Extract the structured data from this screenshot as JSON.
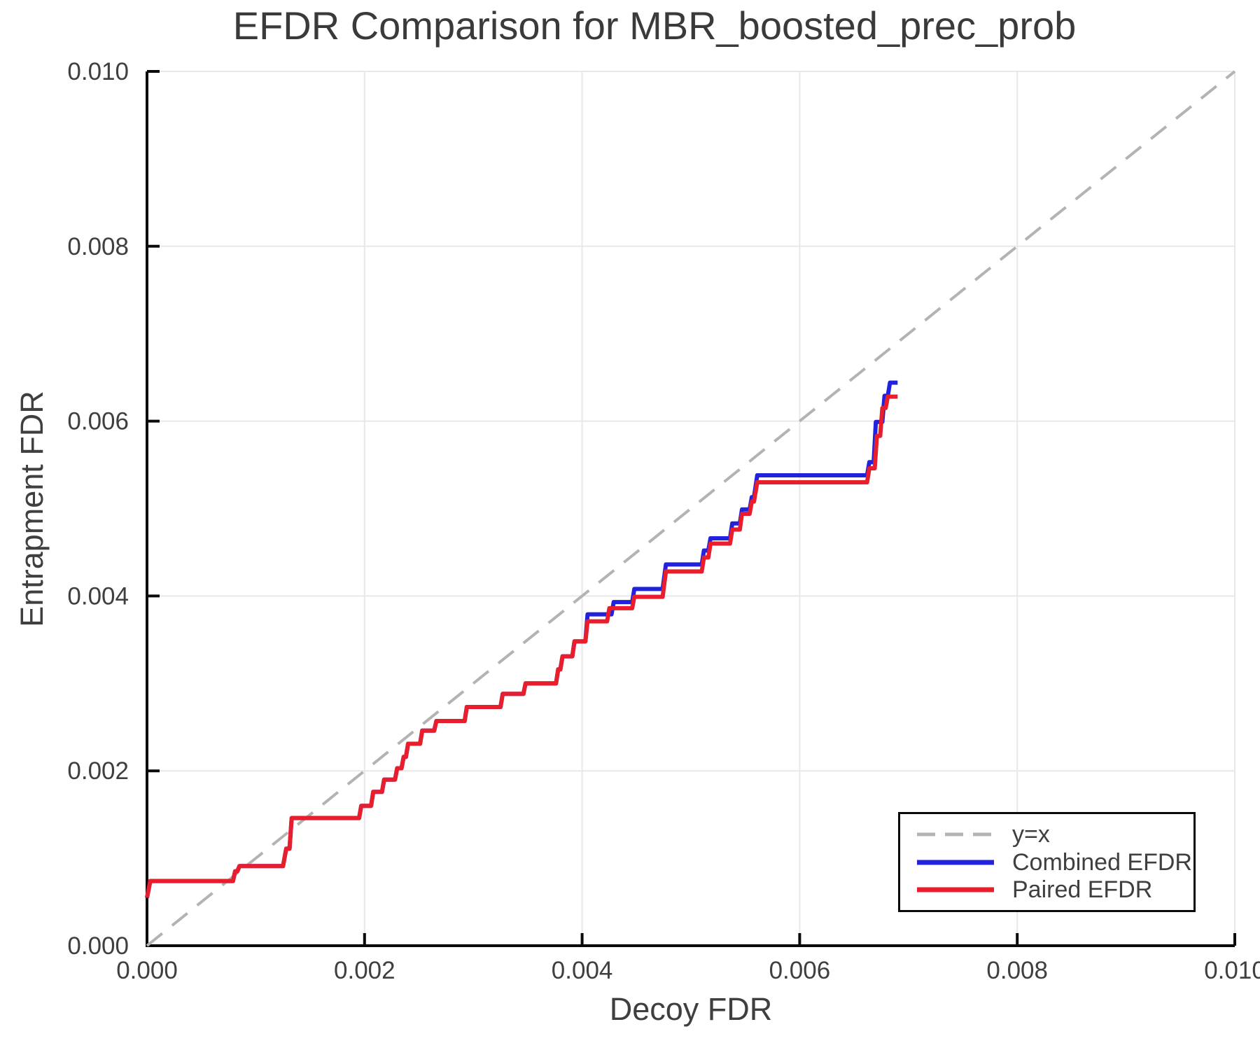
{
  "page": {
    "background": "#ffffff"
  },
  "chart_data": {
    "type": "line",
    "title": "EFDR Comparison for MBR_boosted_prec_prob",
    "xlabel": "Decoy FDR",
    "ylabel": "Entrapment FDR",
    "xlim": [
      0.0,
      0.01
    ],
    "ylim": [
      0.0,
      0.01
    ],
    "grid": true,
    "grid_color": "#e8e8e8",
    "axis_color": "#0a0a0a",
    "text_color": "#3f3f3f",
    "legend_position": "lower right",
    "xticks": {
      "values": [
        0.0,
        0.002,
        0.004,
        0.006,
        0.008,
        0.01
      ],
      "labels": [
        "0.000",
        "0.002",
        "0.004",
        "0.006",
        "0.008",
        "0.010"
      ]
    },
    "yticks": {
      "values": [
        0.0,
        0.002,
        0.004,
        0.006,
        0.008,
        0.01
      ],
      "labels": [
        "0.000",
        "0.002",
        "0.004",
        "0.006",
        "0.008",
        "0.010"
      ]
    },
    "series": [
      {
        "name": "y=x",
        "color": "#b3b3b3",
        "style": "dashed",
        "width": 4,
        "points": [
          [
            0.0,
            0.0
          ],
          [
            0.01,
            0.01
          ]
        ]
      },
      {
        "name": "Combined EFDR",
        "color": "#2222dd",
        "style": "solid",
        "width": 6,
        "points": [
          [
            0.0,
            0.00055
          ],
          [
            3e-05,
            0.00074
          ],
          [
            0.00079,
            0.00074
          ],
          [
            0.00081,
            0.00085
          ],
          [
            0.00083,
            0.00085
          ],
          [
            0.00085,
            0.00091
          ],
          [
            0.00125,
            0.00091
          ],
          [
            0.00128,
            0.00111
          ],
          [
            0.00131,
            0.00111
          ],
          [
            0.00133,
            0.00146
          ],
          [
            0.00195,
            0.00146
          ],
          [
            0.00197,
            0.0016
          ],
          [
            0.00206,
            0.0016
          ],
          [
            0.00208,
            0.00176
          ],
          [
            0.00216,
            0.00176
          ],
          [
            0.00218,
            0.0019
          ],
          [
            0.00228,
            0.0019
          ],
          [
            0.0023,
            0.00203
          ],
          [
            0.00234,
            0.00203
          ],
          [
            0.00236,
            0.00216
          ],
          [
            0.00238,
            0.00216
          ],
          [
            0.0024,
            0.00231
          ],
          [
            0.00251,
            0.00231
          ],
          [
            0.00253,
            0.00246
          ],
          [
            0.00264,
            0.00246
          ],
          [
            0.00266,
            0.00257
          ],
          [
            0.00292,
            0.00257
          ],
          [
            0.00294,
            0.00273
          ],
          [
            0.00325,
            0.00273
          ],
          [
            0.00327,
            0.00288
          ],
          [
            0.00346,
            0.00288
          ],
          [
            0.00348,
            0.003
          ],
          [
            0.00376,
            0.003
          ],
          [
            0.00378,
            0.00316
          ],
          [
            0.0038,
            0.00316
          ],
          [
            0.00382,
            0.00331
          ],
          [
            0.00391,
            0.00331
          ],
          [
            0.00393,
            0.00348
          ],
          [
            0.00403,
            0.00348
          ],
          [
            0.00405,
            0.00379
          ],
          [
            0.00427,
            0.00379
          ],
          [
            0.00429,
            0.00393
          ],
          [
            0.00446,
            0.00393
          ],
          [
            0.00448,
            0.00408
          ],
          [
            0.00474,
            0.00408
          ],
          [
            0.00477,
            0.00436
          ],
          [
            0.0051,
            0.00436
          ],
          [
            0.00512,
            0.00452
          ],
          [
            0.00516,
            0.00452
          ],
          [
            0.00518,
            0.00466
          ],
          [
            0.00536,
            0.00466
          ],
          [
            0.00538,
            0.00483
          ],
          [
            0.00545,
            0.00483
          ],
          [
            0.00547,
            0.00499
          ],
          [
            0.00554,
            0.00499
          ],
          [
            0.00556,
            0.00513
          ],
          [
            0.00558,
            0.00513
          ],
          [
            0.00561,
            0.00538
          ],
          [
            0.00662,
            0.00538
          ],
          [
            0.00664,
            0.00553
          ],
          [
            0.00668,
            0.00553
          ],
          [
            0.0067,
            0.00599
          ],
          [
            0.00676,
            0.00599
          ],
          [
            0.00678,
            0.00629
          ],
          [
            0.00681,
            0.00629
          ],
          [
            0.00683,
            0.00644
          ],
          [
            0.0069,
            0.00644
          ]
        ]
      },
      {
        "name": "Paired EFDR",
        "color": "#e81e2c",
        "style": "solid",
        "width": 6,
        "points": [
          [
            0.0,
            0.00055
          ],
          [
            3e-05,
            0.00074
          ],
          [
            0.00079,
            0.00074
          ],
          [
            0.00081,
            0.00085
          ],
          [
            0.00083,
            0.00085
          ],
          [
            0.00085,
            0.00091
          ],
          [
            0.00125,
            0.00091
          ],
          [
            0.00128,
            0.00111
          ],
          [
            0.00131,
            0.00111
          ],
          [
            0.00133,
            0.00146
          ],
          [
            0.00195,
            0.00146
          ],
          [
            0.00197,
            0.0016
          ],
          [
            0.00206,
            0.0016
          ],
          [
            0.00208,
            0.00176
          ],
          [
            0.00216,
            0.00176
          ],
          [
            0.00218,
            0.0019
          ],
          [
            0.00228,
            0.0019
          ],
          [
            0.0023,
            0.00203
          ],
          [
            0.00234,
            0.00203
          ],
          [
            0.00236,
            0.00216
          ],
          [
            0.00238,
            0.00216
          ],
          [
            0.0024,
            0.00231
          ],
          [
            0.00251,
            0.00231
          ],
          [
            0.00253,
            0.00246
          ],
          [
            0.00264,
            0.00246
          ],
          [
            0.00266,
            0.00257
          ],
          [
            0.00292,
            0.00257
          ],
          [
            0.00294,
            0.00273
          ],
          [
            0.00325,
            0.00273
          ],
          [
            0.00327,
            0.00288
          ],
          [
            0.00346,
            0.00288
          ],
          [
            0.00348,
            0.003
          ],
          [
            0.00376,
            0.003
          ],
          [
            0.00378,
            0.00316
          ],
          [
            0.0038,
            0.00316
          ],
          [
            0.00382,
            0.00331
          ],
          [
            0.00391,
            0.00331
          ],
          [
            0.00393,
            0.00348
          ],
          [
            0.00403,
            0.00348
          ],
          [
            0.00405,
            0.00371
          ],
          [
            0.00423,
            0.00371
          ],
          [
            0.00425,
            0.00386
          ],
          [
            0.00446,
            0.00386
          ],
          [
            0.00448,
            0.00399
          ],
          [
            0.00474,
            0.00399
          ],
          [
            0.00477,
            0.00428
          ],
          [
            0.0051,
            0.00428
          ],
          [
            0.00512,
            0.00444
          ],
          [
            0.00516,
            0.00444
          ],
          [
            0.00518,
            0.0046
          ],
          [
            0.00536,
            0.0046
          ],
          [
            0.00538,
            0.00476
          ],
          [
            0.00545,
            0.00476
          ],
          [
            0.00547,
            0.00494
          ],
          [
            0.00554,
            0.00494
          ],
          [
            0.00556,
            0.00508
          ],
          [
            0.00558,
            0.00508
          ],
          [
            0.00561,
            0.0053
          ],
          [
            0.00662,
            0.0053
          ],
          [
            0.00664,
            0.00546
          ],
          [
            0.00669,
            0.00546
          ],
          [
            0.00671,
            0.00583
          ],
          [
            0.00674,
            0.00583
          ],
          [
            0.00676,
            0.00615
          ],
          [
            0.00679,
            0.00615
          ],
          [
            0.00681,
            0.00628
          ],
          [
            0.0069,
            0.00628
          ]
        ]
      }
    ]
  }
}
